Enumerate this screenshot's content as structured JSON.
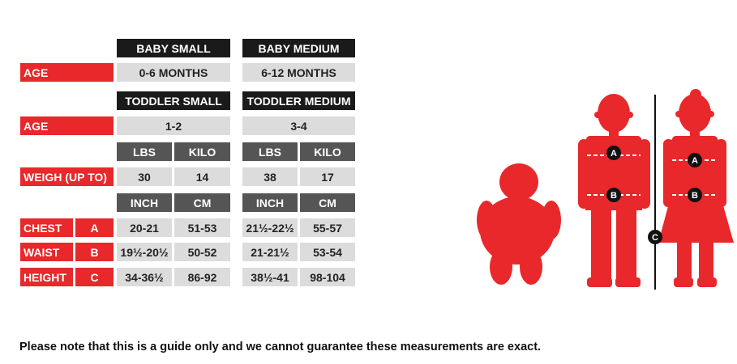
{
  "sizes": {
    "baby_small": "BABY SMALL",
    "baby_medium": "BABY MEDIUM",
    "toddler_small": "TODDLER SMALL",
    "toddler_medium": "TODDLER MEDIUM"
  },
  "age": {
    "label_1": "AGE",
    "label_2": "AGE",
    "baby_small": "0-6 MONTHS",
    "baby_medium": "6-12 MONTHS",
    "toddler_small": "1-2",
    "toddler_medium": "3-4"
  },
  "weight": {
    "label": "WEIGH (UP TO)",
    "units": [
      "LBS",
      "KILO",
      "LBS",
      "KILO"
    ],
    "values": [
      "30",
      "14",
      "38",
      "17"
    ]
  },
  "measures": {
    "units": [
      "INCH",
      "CM",
      "INCH",
      "CM"
    ],
    "rows": [
      {
        "label": "CHEST",
        "key": "A",
        "values": [
          "20-21",
          "51-53",
          "21½-22½",
          "55-57"
        ]
      },
      {
        "label": "WAIST",
        "key": "B",
        "values": [
          "19½-20½",
          "50-52",
          "21-21½",
          "53-54"
        ]
      },
      {
        "label": "HEIGHT",
        "key": "C",
        "values": [
          "34-36½",
          "86-92",
          "38½-41",
          "98-104"
        ]
      }
    ]
  },
  "figure_markers": [
    "A",
    "B",
    "C",
    "A",
    "B"
  ],
  "note": "Please note that this is a guide only and we cannot guarantee these measurements are exact.",
  "colors": {
    "accent_red": "#e8282b",
    "header_black": "#1a1a1a",
    "unit_gray": "#555555",
    "cell_gray": "#dcdcdc"
  }
}
